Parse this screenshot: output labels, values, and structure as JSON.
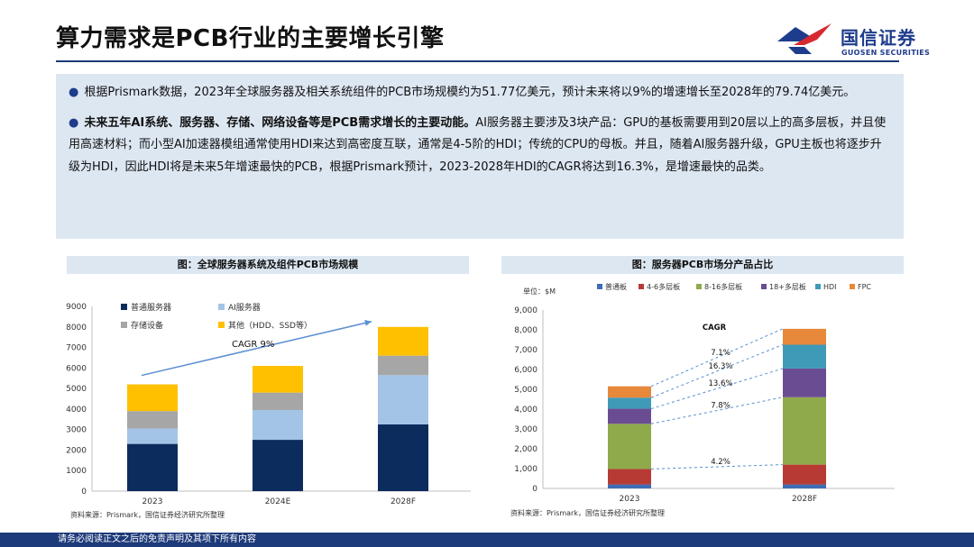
{
  "title": "算力需求是PCB行业的主要增长引擎",
  "logo": {
    "cn": "国信证券",
    "en": "GUOSEN SECURITIES"
  },
  "bullets": [
    {
      "plain": "根据Prismark数据，2023年全球服务器及相关系统组件的PCB市场规模约为51.77亿美元，预计未来将以9%的增速增长至2028年的79.74亿美元。",
      "bold": ""
    },
    {
      "bold": "未来五年AI系统、服务器、存储、网络设备等是PCB需求增长的主要动能。",
      "plain": "AI服务器主要涉及3块产品：GPU的基板需要用到20层以上的高多层板，并且使用高速材料；而小型AI加速器模组通常使用HDI来达到高密度互联，通常是4-5阶的HDI；传统的CPU的母板。并且，随着AI服务器升级，GPU主板也将逐步升级为HDI，因此HDI将是未来5年增速最快的PCB，根据Prismark预计，2023-2028年HDI的CAGR将达到16.3%，是增速最快的品类。"
    }
  ],
  "chart1": {
    "caption": "图：全球服务器系统及组件PCB市场规模",
    "source": "资料来源：Prismark，国信证券经济研究所整理",
    "annotation": "CAGR 9%"
  },
  "chart2": {
    "caption": "图：服务器PCB市场分产品占比",
    "source": "资料来源：Prismark，国信证券经济研究所整理",
    "unit_label": "单位：$M",
    "cagr_title": "CAGR"
  },
  "footer": "请务必阅读正文之后的免责声明及其项下所有内容",
  "chart_data": [
    {
      "type": "bar",
      "stacked": true,
      "categories": [
        "2023",
        "2024E",
        "2028F"
      ],
      "ylim": [
        0,
        9000
      ],
      "yticks": [
        0,
        1000,
        2000,
        3000,
        4000,
        5000,
        6000,
        7000,
        8000,
        9000
      ],
      "legend_placement": "top-left",
      "series": [
        {
          "name": "普通服务器",
          "color": "#0d2c5e",
          "values": [
            2300,
            2500,
            3250
          ]
        },
        {
          "name": "AI服务器",
          "color": "#a3c4e6",
          "values": [
            750,
            1450,
            2400
          ]
        },
        {
          "name": "存储设备",
          "color": "#a6a6a6",
          "values": [
            850,
            850,
            950
          ]
        },
        {
          "name": "其他（HDD、SSD等）",
          "color": "#ffc000",
          "values": [
            1300,
            1300,
            1400
          ]
        }
      ],
      "grid": false
    },
    {
      "type": "bar",
      "stacked": true,
      "categories": [
        "2023",
        "2028F"
      ],
      "ylim": [
        0,
        9000
      ],
      "yticks": [
        "0",
        "1,000",
        "2,000",
        "3,000",
        "4,000",
        "5,000",
        "6,000",
        "7,000",
        "8,000",
        "9,000"
      ],
      "legend_placement": "top",
      "series": [
        {
          "name": "普通板",
          "color": "#3e6db5",
          "values": [
            200,
            200
          ]
        },
        {
          "name": "4-6多层板",
          "color": "#b83a34",
          "values": [
            780,
            1000
          ]
        },
        {
          "name": "8-16多层板",
          "color": "#8faa4b",
          "values": [
            2280,
            3400
          ]
        },
        {
          "name": "18+多层板",
          "color": "#6a4c93",
          "values": [
            760,
            1450
          ]
        },
        {
          "name": "HDI",
          "color": "#3f9ab7",
          "values": [
            560,
            1200
          ]
        },
        {
          "name": "FPC",
          "color": "#e8883a",
          "values": [
            570,
            800
          ]
        }
      ],
      "cagr_labels": [
        "4.2%",
        "7.8%",
        "13.6%",
        "16.3%",
        "7.1%"
      ],
      "grid": false
    }
  ]
}
